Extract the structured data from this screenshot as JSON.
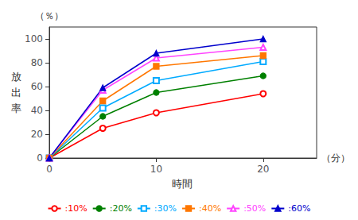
{
  "chart_data": {
    "type": "line",
    "xlabel": "時間",
    "ylabel": "放\n出\n率",
    "annotations": [
      {
        "text": "（％）",
        "axis": "y"
      },
      {
        "text": "（分）",
        "axis": "x"
      }
    ],
    "x": [
      0,
      5,
      10,
      20
    ],
    "series": [
      {
        "name": ":10%",
        "color": "#ff0000",
        "marker": "circle_open",
        "values": [
          0,
          25,
          38,
          54
        ]
      },
      {
        "name": ":20%",
        "color": "#008000",
        "marker": "circle",
        "values": [
          0,
          35,
          55,
          69
        ]
      },
      {
        "name": ":30%",
        "color": "#00aaff",
        "marker": "square_open",
        "values": [
          0,
          42,
          65,
          81
        ]
      },
      {
        "name": ":40%",
        "color": "#ff7700",
        "marker": "square",
        "values": [
          0,
          48,
          77,
          86
        ]
      },
      {
        "name": ":50%",
        "color": "#ff44ff",
        "marker": "triangle_open",
        "values": [
          0,
          57,
          84,
          93
        ]
      },
      {
        "name": ":60%",
        "color": "#0000cc",
        "marker": "triangle",
        "values": [
          0,
          59,
          88,
          100
        ]
      }
    ],
    "xlim": [
      0,
      25
    ],
    "ylim": [
      0,
      110
    ],
    "xticks": [
      0,
      10,
      20
    ],
    "yticks": [
      0,
      20,
      40,
      60,
      80,
      100
    ],
    "grid": false,
    "legend": "bottom"
  }
}
